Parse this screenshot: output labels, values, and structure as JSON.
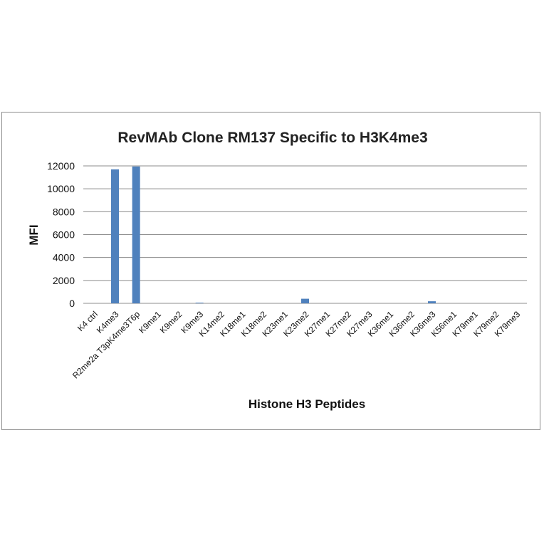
{
  "chart_data": {
    "type": "bar",
    "title": "RevMAb Clone RM137 Specific to H3K4me3",
    "xlabel": "Histone H3 Peptides",
    "ylabel": "MFI",
    "ylim": [
      0,
      12000
    ],
    "yticks": [
      0,
      2000,
      4000,
      6000,
      8000,
      10000,
      12000
    ],
    "grid": true,
    "categories": [
      "K4 ctrl",
      "K4me3",
      "R2me2a T3pK4me3T6p",
      "K9me1",
      "K9me2",
      "K9me3",
      "K14me2",
      "K18me1",
      "K18me2",
      "K23me1",
      "K23me2",
      "K27me1",
      "K27me2",
      "K27me3",
      "K36me1",
      "K36me2",
      "K36me3",
      "K56me1",
      "K79me1",
      "K79me2",
      "K79me3"
    ],
    "values": [
      0,
      11700,
      11950,
      0,
      0,
      60,
      0,
      0,
      0,
      0,
      400,
      0,
      0,
      0,
      0,
      0,
      180,
      0,
      0,
      0,
      0
    ],
    "bar_color": "#4f81bd"
  }
}
